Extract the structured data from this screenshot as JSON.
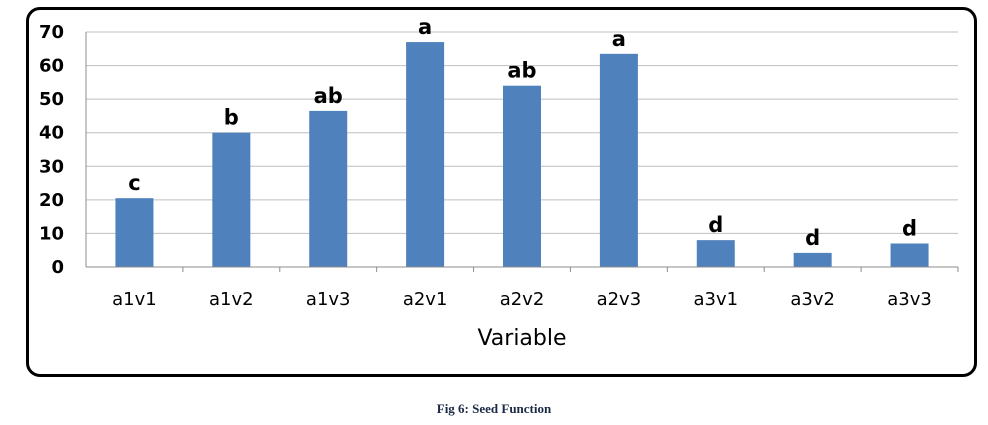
{
  "chart_data": {
    "type": "bar",
    "title": "",
    "xlabel": "Variable",
    "ylabel": "",
    "ylim": [
      0,
      70
    ],
    "yticks": [
      0,
      10,
      20,
      30,
      40,
      50,
      60,
      70
    ],
    "grid": true,
    "categories": [
      "a1v1",
      "a1v2",
      "a1v3",
      "a2v1",
      "a2v2",
      "a2v3",
      "a3v1",
      "a3v2",
      "a3v3"
    ],
    "values": [
      20.5,
      40,
      46.5,
      67,
      54,
      63.5,
      8,
      4.2,
      7
    ],
    "data_labels": [
      "c",
      "b",
      "ab",
      "a",
      "ab",
      "a",
      "d",
      "d",
      "d"
    ],
    "bar_color": "#4f81bd",
    "grid_color": "#bfbfbf"
  },
  "caption": "Fig 6: Seed Function"
}
